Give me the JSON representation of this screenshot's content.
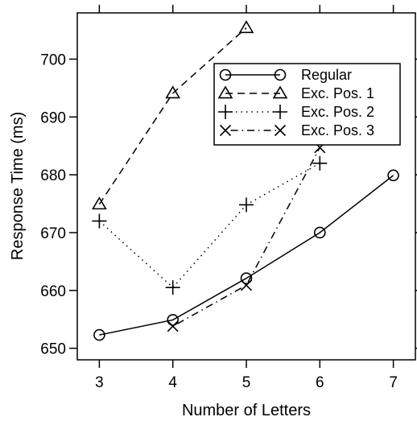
{
  "chart_data": {
    "type": "line",
    "title": "",
    "xlabel": "Number of Letters",
    "ylabel": "Response Time (ms)",
    "xlim": [
      2.7,
      7.3
    ],
    "ylim": [
      648,
      708
    ],
    "xticks": [
      3,
      4,
      5,
      6,
      7
    ],
    "yticks": [
      650,
      660,
      670,
      680,
      690,
      700
    ],
    "grid": false,
    "legend_position": "top-right",
    "series": [
      {
        "name": "Regular",
        "marker": "circle",
        "line": "solid",
        "points": [
          [
            3,
            652.3
          ],
          [
            4,
            654.9
          ],
          [
            5,
            662.1
          ],
          [
            6,
            670.0
          ],
          [
            7,
            679.9
          ]
        ]
      },
      {
        "name": "Exc. Pos. 1",
        "marker": "triangle",
        "line": "dashed",
        "points": [
          [
            3,
            674.9
          ],
          [
            4,
            694.1
          ],
          [
            5,
            705.4
          ]
        ]
      },
      {
        "name": "Exc. Pos. 2",
        "marker": "plus",
        "line": "dotted",
        "points": [
          [
            3,
            672.0
          ],
          [
            4,
            660.5
          ],
          [
            5,
            674.8
          ],
          [
            6,
            682.0
          ]
        ]
      },
      {
        "name": "Exc. Pos. 3",
        "marker": "cross",
        "line": "dotdash",
        "points": [
          [
            4,
            653.8
          ],
          [
            5,
            660.9
          ],
          [
            6,
            684.7
          ]
        ]
      }
    ]
  }
}
